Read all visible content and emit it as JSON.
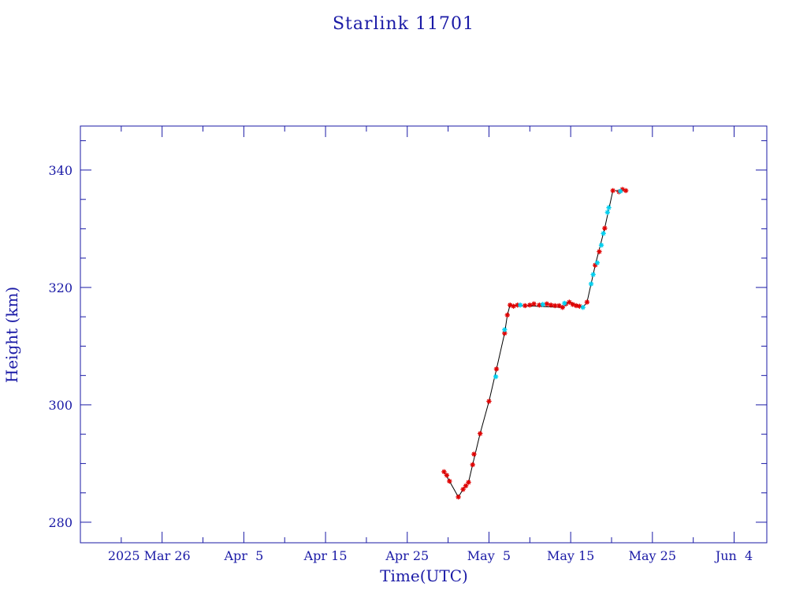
{
  "chart_data": {
    "type": "scatter",
    "title": "Starlink 11701",
    "xlabel": "Time(UTC)",
    "ylabel": "Height (km)",
    "x_is_date": true,
    "xlim": [
      "2025-03-16",
      "2025-06-08"
    ],
    "ylim": [
      276.5,
      347.5
    ],
    "x_ticks": [
      {
        "date": "2025-03-26",
        "label": "2025 Mar 26"
      },
      {
        "date": "2025-04-05",
        "label": "Apr  5"
      },
      {
        "date": "2025-04-15",
        "label": "Apr 15"
      },
      {
        "date": "2025-04-25",
        "label": "Apr 25"
      },
      {
        "date": "2025-05-05",
        "label": "May  5"
      },
      {
        "date": "2025-05-15",
        "label": "May 15"
      },
      {
        "date": "2025-05-25",
        "label": "May 25"
      },
      {
        "date": "2025-06-04",
        "label": "Jun  4"
      }
    ],
    "y_ticks": [
      280,
      300,
      320,
      340
    ],
    "colors": {
      "axes": "#1a1aa6",
      "line": "#000000",
      "primary_points": "#e00000",
      "secondary_points": "#00d0f0"
    },
    "series": [
      {
        "marker": "red-asterisk",
        "color": "#e00000",
        "points": [
          {
            "t": "2025-04-29T12:00",
            "h": 288.6
          },
          {
            "t": "2025-04-29T20:00",
            "h": 288.0
          },
          {
            "t": "2025-04-30T04:00",
            "h": 287.0
          },
          {
            "t": "2025-05-01T06:00",
            "h": 284.3
          },
          {
            "t": "2025-05-01T20:00",
            "h": 285.6
          },
          {
            "t": "2025-05-02T04:00",
            "h": 286.2
          },
          {
            "t": "2025-05-02T12:00",
            "h": 286.8
          },
          {
            "t": "2025-05-03T00:00",
            "h": 289.8
          },
          {
            "t": "2025-05-03T04:00",
            "h": 291.6
          },
          {
            "t": "2025-05-03T22:00",
            "h": 295.1
          },
          {
            "t": "2025-05-05T00:00",
            "h": 300.6
          },
          {
            "t": "2025-05-05T22:00",
            "h": 306.1
          },
          {
            "t": "2025-05-06T22:00",
            "h": 312.2
          },
          {
            "t": "2025-05-07T06:00",
            "h": 315.3
          },
          {
            "t": "2025-05-07T14:00",
            "h": 317.0
          },
          {
            "t": "2025-05-08T00:00",
            "h": 316.8
          },
          {
            "t": "2025-05-08T12:00",
            "h": 317.0
          },
          {
            "t": "2025-05-09T10:00",
            "h": 316.9
          },
          {
            "t": "2025-05-10T00:00",
            "h": 317.0
          },
          {
            "t": "2025-05-10T12:00",
            "h": 317.2
          },
          {
            "t": "2025-05-11T04:00",
            "h": 317.0
          },
          {
            "t": "2025-05-12T02:00",
            "h": 317.2
          },
          {
            "t": "2025-05-12T14:00",
            "h": 317.0
          },
          {
            "t": "2025-05-13T02:00",
            "h": 316.9
          },
          {
            "t": "2025-05-13T14:00",
            "h": 316.9
          },
          {
            "t": "2025-05-14T00:00",
            "h": 316.6
          },
          {
            "t": "2025-05-14T10:00",
            "h": 317.2
          },
          {
            "t": "2025-05-14T20:00",
            "h": 317.5
          },
          {
            "t": "2025-05-15T06:00",
            "h": 317.1
          },
          {
            "t": "2025-05-15T16:00",
            "h": 316.9
          },
          {
            "t": "2025-05-16T02:00",
            "h": 316.8
          },
          {
            "t": "2025-05-17T00:00",
            "h": 317.5
          },
          {
            "t": "2025-05-18T00:00",
            "h": 323.8
          },
          {
            "t": "2025-05-18T12:00",
            "h": 326.1
          },
          {
            "t": "2025-05-19T04:00",
            "h": 330.1
          },
          {
            "t": "2025-05-20T04:00",
            "h": 336.5
          },
          {
            "t": "2025-05-20T22:00",
            "h": 336.3
          },
          {
            "t": "2025-05-21T08:00",
            "h": 336.7
          },
          {
            "t": "2025-05-21T18:00",
            "h": 336.5
          }
        ]
      },
      {
        "marker": "cyan-asterisk",
        "color": "#00d0f0",
        "points": [
          {
            "t": "2025-05-05T20:00",
            "h": 304.8
          },
          {
            "t": "2025-05-06T22:00",
            "h": 312.8
          },
          {
            "t": "2025-05-08T20:00",
            "h": 317.0
          },
          {
            "t": "2025-05-11T14:00",
            "h": 317.1
          },
          {
            "t": "2025-05-14T06:00",
            "h": 317.3
          },
          {
            "t": "2025-05-16T12:00",
            "h": 316.6
          },
          {
            "t": "2025-05-17T12:00",
            "h": 320.6
          },
          {
            "t": "2025-05-17T18:00",
            "h": 322.2
          },
          {
            "t": "2025-05-18T06:00",
            "h": 324.2
          },
          {
            "t": "2025-05-18T18:00",
            "h": 327.2
          },
          {
            "t": "2025-05-19T00:00",
            "h": 329.2
          },
          {
            "t": "2025-05-19T12:00",
            "h": 332.8
          },
          {
            "t": "2025-05-19T16:00",
            "h": 333.6
          },
          {
            "t": "2025-05-21T02:00",
            "h": 336.4
          }
        ]
      }
    ],
    "line_points": [
      {
        "t": "2025-04-29T12:00",
        "h": 288.6
      },
      {
        "t": "2025-04-30T04:00",
        "h": 287.0
      },
      {
        "t": "2025-05-01T06:00",
        "h": 284.3
      },
      {
        "t": "2025-05-01T20:00",
        "h": 285.6
      },
      {
        "t": "2025-05-02T12:00",
        "h": 286.8
      },
      {
        "t": "2025-05-03T00:00",
        "h": 289.8
      },
      {
        "t": "2025-05-03T22:00",
        "h": 295.1
      },
      {
        "t": "2025-05-05T00:00",
        "h": 300.6
      },
      {
        "t": "2025-05-05T22:00",
        "h": 306.1
      },
      {
        "t": "2025-05-06T22:00",
        "h": 312.2
      },
      {
        "t": "2025-05-07T06:00",
        "h": 315.3
      },
      {
        "t": "2025-05-07T14:00",
        "h": 317.0
      },
      {
        "t": "2025-05-14T00:00",
        "h": 316.6
      },
      {
        "t": "2025-05-14T20:00",
        "h": 317.5
      },
      {
        "t": "2025-05-16T12:00",
        "h": 316.6
      },
      {
        "t": "2025-05-17T00:00",
        "h": 317.5
      },
      {
        "t": "2025-05-18T00:00",
        "h": 323.8
      },
      {
        "t": "2025-05-19T04:00",
        "h": 330.1
      },
      {
        "t": "2025-05-20T04:00",
        "h": 336.5
      },
      {
        "t": "2025-05-21T18:00",
        "h": 336.5
      }
    ]
  }
}
